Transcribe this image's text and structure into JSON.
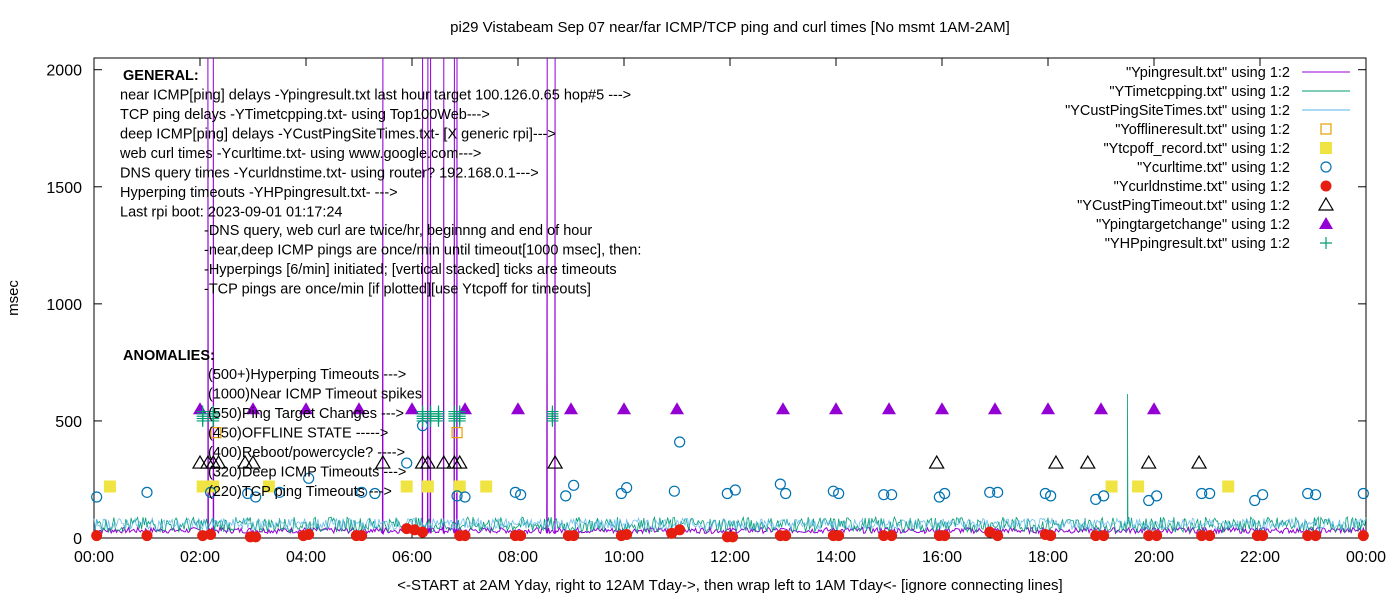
{
  "chart_data": {
    "type": "scatter",
    "title": "pi29 Vistabeam Sep 07  near/far ICMP/TCP ping and curl times [No msmt 1AM-2AM]",
    "xlabel": "<-START at 2AM Yday, right to 12AM Tday->, then wrap left to 1AM Tday<- [ignore connecting lines]",
    "ylabel": "msec",
    "xlim": [
      0,
      24
    ],
    "ylim": [
      0,
      2050
    ],
    "y_ticks": [
      0,
      500,
      1000,
      1500,
      2000
    ],
    "x_tick_labels": [
      "00:00",
      "02:00",
      "04:00",
      "06:00",
      "08:00",
      "10:00",
      "12:00",
      "14:00",
      "16:00",
      "18:00",
      "20:00",
      "22:00",
      "00:00"
    ],
    "legend_position": "top-right",
    "general_lines": [
      "GENERAL:",
      "near ICMP[ping] delays -Ypingresult.txt last hour target 100.126.0.65 hop#5 --->",
      "TCP ping delays -YTimetcpping.txt- using Top100Web--->",
      "deep ICMP[ping] delays -YCustPingSiteTimes.txt- [X generic rpi]--->",
      "web curl times -Ycurltime.txt- using www.google.com--->",
      "DNS query times -Ycurldnstime.txt- using router? 192.168.0.1--->",
      "Hyperping timeouts -YHPpingresult.txt- --->",
      "Last rpi boot: 2023-09-01 01:17:24"
    ],
    "notes": [
      "-DNS query, web curl are twice/hr, beginnng and end of hour",
      "-near,deep ICMP pings are once/min until timeout[1000 msec], then:",
      "  -Hyperpings [6/min] initiated; [vertical stacked] ticks are timeouts",
      "-TCP pings are once/min [if plotted][use Ytcpoff for timeouts]"
    ],
    "anomalies_title": "ANOMALIES:",
    "anomalies": [
      "(500+)Hyperping Timeouts --->",
      "(1000)Near ICMP Timeout spikes",
      "(550)Ping Target Changes --->",
      "(450)OFFLINE STATE ----->",
      "(400)Reboot/powercycle? ---->",
      "(320)Deep ICMP Timeouts --->",
      "(220)TCP ping Timeouts --->"
    ],
    "series": [
      {
        "name": "\"Ypingresult.txt\" using 1:2",
        "style": "line",
        "color": "#9400d3",
        "spikes": [
          2.15,
          2.25,
          5.45,
          6.2,
          6.3,
          6.35,
          6.6,
          6.8,
          6.85,
          8.55,
          8.7
        ],
        "spike_value": 2050,
        "baseline": 20
      },
      {
        "name": "\"YTimetcpping.txt\" using 1:2",
        "style": "line",
        "color": "#009e73",
        "baseline": 60,
        "spikes": [
          19.5
        ],
        "spike_value": 615
      },
      {
        "name": "\"YCustPingSiteTimes.txt\" using 1:2",
        "style": "line",
        "color": "#56b4e9",
        "baseline": 65
      },
      {
        "name": "\"Yofflineresult.txt\" using 1:2",
        "marker": "square-open",
        "color": "#e69f00",
        "points": [
          [
            2.3,
            450
          ],
          [
            6.85,
            450
          ]
        ]
      },
      {
        "name": "\"Ytcpoff_record.txt\" using 1:2",
        "marker": "square-filled",
        "color": "#f0e442",
        "points": [
          [
            0.3,
            220
          ],
          [
            2.05,
            220
          ],
          [
            2.25,
            220
          ],
          [
            3.3,
            220
          ],
          [
            5.9,
            220
          ],
          [
            6.3,
            220
          ],
          [
            6.9,
            220
          ],
          [
            7.4,
            220
          ],
          [
            19.2,
            220
          ],
          [
            19.7,
            220
          ],
          [
            21.4,
            220
          ]
        ]
      },
      {
        "name": "\"Ycurltime.txt\" using 1:2",
        "marker": "circle-open",
        "color": "#0072b2",
        "points": [
          [
            0.05,
            175
          ],
          [
            1.0,
            195
          ],
          [
            2.2,
            195
          ],
          [
            2.9,
            190
          ],
          [
            3.05,
            175
          ],
          [
            3.5,
            195
          ],
          [
            4.05,
            255
          ],
          [
            5.05,
            195
          ],
          [
            5.3,
            190
          ],
          [
            5.9,
            320
          ],
          [
            6.2,
            480
          ],
          [
            6.85,
            180
          ],
          [
            7.0,
            175
          ],
          [
            7.95,
            195
          ],
          [
            8.05,
            185
          ],
          [
            8.9,
            180
          ],
          [
            9.05,
            225
          ],
          [
            9.95,
            190
          ],
          [
            10.05,
            215
          ],
          [
            10.95,
            200
          ],
          [
            11.05,
            410
          ],
          [
            11.95,
            190
          ],
          [
            12.1,
            205
          ],
          [
            12.95,
            230
          ],
          [
            13.05,
            190
          ],
          [
            13.95,
            200
          ],
          [
            14.05,
            190
          ],
          [
            14.9,
            185
          ],
          [
            15.05,
            185
          ],
          [
            15.95,
            175
          ],
          [
            16.05,
            190
          ],
          [
            16.9,
            195
          ],
          [
            17.05,
            195
          ],
          [
            17.95,
            190
          ],
          [
            18.05,
            180
          ],
          [
            18.9,
            165
          ],
          [
            19.05,
            180
          ],
          [
            19.9,
            160
          ],
          [
            20.05,
            180
          ],
          [
            20.9,
            190
          ],
          [
            21.05,
            190
          ],
          [
            21.9,
            160
          ],
          [
            22.05,
            185
          ],
          [
            22.9,
            190
          ],
          [
            23.05,
            185
          ],
          [
            23.95,
            190
          ]
        ]
      },
      {
        "name": "\"Ycurldnstime.txt\" using 1:2",
        "marker": "circle-filled",
        "color": "#e51e10",
        "points": [
          [
            0.05,
            10
          ],
          [
            1.0,
            10
          ],
          [
            2.05,
            10
          ],
          [
            2.2,
            15
          ],
          [
            2.95,
            5
          ],
          [
            3.05,
            5
          ],
          [
            3.95,
            10
          ],
          [
            4.05,
            15
          ],
          [
            4.95,
            10
          ],
          [
            5.05,
            10
          ],
          [
            5.9,
            40
          ],
          [
            6.05,
            35
          ],
          [
            6.2,
            25
          ],
          [
            6.9,
            10
          ],
          [
            7.0,
            10
          ],
          [
            7.95,
            10
          ],
          [
            8.05,
            10
          ],
          [
            8.95,
            10
          ],
          [
            9.05,
            10
          ],
          [
            9.95,
            10
          ],
          [
            10.05,
            15
          ],
          [
            10.9,
            20
          ],
          [
            11.05,
            35
          ],
          [
            11.95,
            5
          ],
          [
            12.05,
            5
          ],
          [
            12.95,
            10
          ],
          [
            13.05,
            10
          ],
          [
            13.95,
            10
          ],
          [
            14.05,
            10
          ],
          [
            14.9,
            10
          ],
          [
            15.05,
            10
          ],
          [
            15.95,
            10
          ],
          [
            16.05,
            10
          ],
          [
            16.9,
            25
          ],
          [
            17.05,
            10
          ],
          [
            17.95,
            15
          ],
          [
            18.05,
            10
          ],
          [
            18.9,
            10
          ],
          [
            19.05,
            10
          ],
          [
            19.9,
            10
          ],
          [
            20.05,
            10
          ],
          [
            20.9,
            10
          ],
          [
            21.05,
            10
          ],
          [
            21.95,
            10
          ],
          [
            22.05,
            10
          ],
          [
            22.9,
            10
          ],
          [
            23.05,
            10
          ],
          [
            23.95,
            10
          ]
        ]
      },
      {
        "name": "\"YCustPingTimeout.txt\" using 1:2",
        "marker": "triangle-open",
        "color": "#000000",
        "points": [
          [
            2.0,
            320
          ],
          [
            2.15,
            320
          ],
          [
            2.25,
            320
          ],
          [
            2.35,
            320
          ],
          [
            2.85,
            320
          ],
          [
            3.0,
            320
          ],
          [
            5.45,
            320
          ],
          [
            6.2,
            320
          ],
          [
            6.3,
            320
          ],
          [
            6.6,
            320
          ],
          [
            6.8,
            320
          ],
          [
            6.9,
            320
          ],
          [
            8.7,
            320
          ],
          [
            15.9,
            320
          ],
          [
            18.15,
            320
          ],
          [
            18.75,
            320
          ],
          [
            19.9,
            320
          ],
          [
            20.85,
            320
          ]
        ]
      },
      {
        "name": "\"Ypingtargetchange\" using 1:2",
        "marker": "triangle-filled",
        "color": "#9400d3",
        "points": [
          [
            2.0,
            550
          ],
          [
            3.0,
            550
          ],
          [
            4.0,
            550
          ],
          [
            5.0,
            550
          ],
          [
            6.0,
            550
          ],
          [
            7.0,
            550
          ],
          [
            8.0,
            550
          ],
          [
            9.0,
            550
          ],
          [
            10.0,
            550
          ],
          [
            11.0,
            550
          ],
          [
            13.0,
            550
          ],
          [
            14.0,
            550
          ],
          [
            15.0,
            550
          ],
          [
            16.0,
            550
          ],
          [
            17.0,
            550
          ],
          [
            18.0,
            550
          ],
          [
            19.0,
            550
          ],
          [
            20.0,
            550
          ]
        ]
      },
      {
        "name": "\"YHPpingresult.txt\" using 1:2",
        "marker": "plus",
        "color": "#009e73",
        "columns": [
          [
            2.05,
            [
              500,
              510,
              520,
              530,
              540
            ]
          ],
          [
            2.25,
            [
              500,
              510,
              520,
              530,
              540
            ]
          ],
          [
            6.2,
            [
              500,
              510,
              520,
              530,
              540
            ]
          ],
          [
            6.35,
            [
              500,
              510,
              520,
              530,
              540
            ]
          ],
          [
            6.5,
            [
              500,
              510,
              520,
              530,
              540
            ]
          ],
          [
            6.8,
            [
              500,
              510,
              520,
              530,
              540
            ]
          ],
          [
            6.9,
            [
              500,
              510,
              520,
              530,
              540
            ]
          ],
          [
            8.65,
            [
              500,
              510,
              520,
              530,
              540
            ]
          ]
        ]
      }
    ]
  }
}
